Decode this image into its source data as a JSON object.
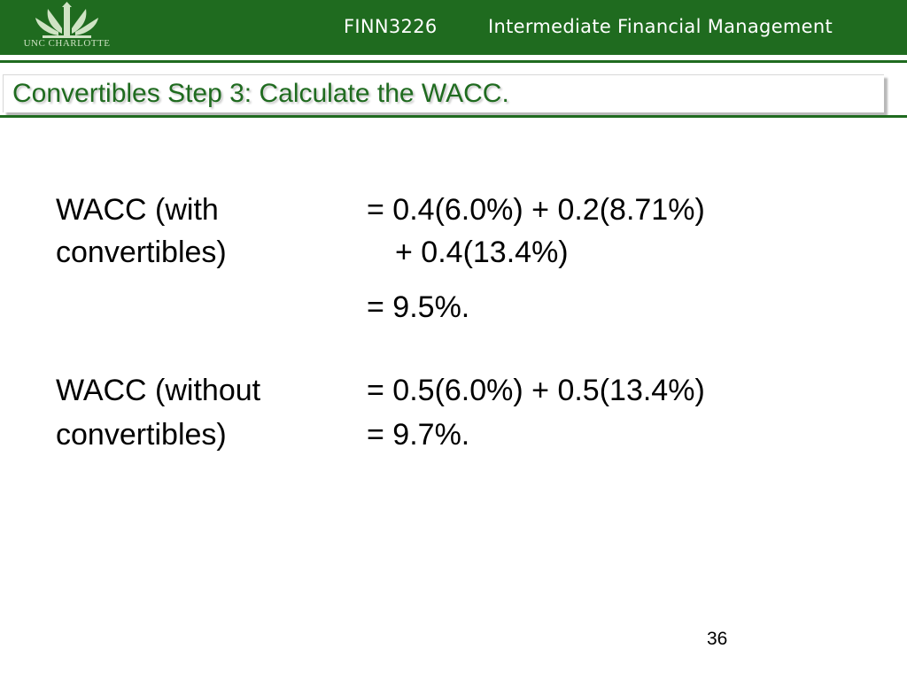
{
  "header": {
    "logo_text": "UNC CHARLOTTE",
    "course_code": "FINN3226",
    "course_name": "Intermediate Financial Management",
    "colors": {
      "banner": "#1f6b1f",
      "title": "#1f6b1f"
    }
  },
  "slide": {
    "title": "Convertibles Step 3:  Calculate the WACC.",
    "wacc_with": {
      "label_line1": "WACC (with",
      "label_line2": "convertibles)",
      "formula_line1": "= 0.4(6.0%) + 0.2(8.71%)",
      "formula_line2": "+ 0.4(13.4%)",
      "result": "= 9.5%."
    },
    "wacc_without": {
      "label_line1": "WACC (without",
      "label_line2": "convertibles)",
      "formula_line1": "= 0.5(6.0%) + 0.5(13.4%)",
      "result": "= 9.7%."
    },
    "page_number": "36"
  }
}
